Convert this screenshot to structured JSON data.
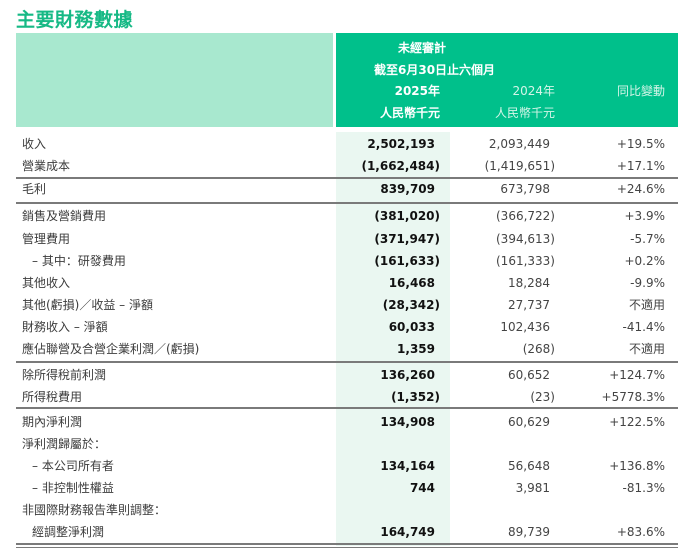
{
  "title": "主要財務數據",
  "header": {
    "group": "未經審計",
    "period": "截至6月30日止六個月",
    "col_2025": "2025年",
    "col_2024": "2024年",
    "col_change": "同比變動",
    "unit_2025": "人民幣千元",
    "unit_2024": "人民幣千元"
  },
  "colors": {
    "title": "#16b985",
    "header_dark": "#00c08b",
    "header_light": "#a8e8cf",
    "band": "#eaf7f1"
  },
  "rows": [
    {
      "label": "收入",
      "v2025": "2,502,193",
      "v2024": "2,093,449",
      "change": "+19.5%"
    },
    {
      "label": "營業成本",
      "v2025": "(1,662,484)",
      "v2024": "(1,419,651)",
      "change": "+17.1%"
    },
    {
      "label": "毛利",
      "v2025": "839,709",
      "v2024": "673,798",
      "change": "+24.6%"
    },
    {
      "label": "銷售及營銷費用",
      "v2025": "(381,020)",
      "v2024": "(366,722)",
      "change": "+3.9%"
    },
    {
      "label": "管理費用",
      "v2025": "(371,947)",
      "v2024": "(394,613)",
      "change": "-5.7%"
    },
    {
      "label": "– 其中：研發費用",
      "v2025": "(161,633)",
      "v2024": "(161,333)",
      "change": "+0.2%",
      "indent": true
    },
    {
      "label": "其他收入",
      "v2025": "16,468",
      "v2024": "18,284",
      "change": "-9.9%"
    },
    {
      "label": "其他(虧損)／收益 – 淨額",
      "v2025": "(28,342)",
      "v2024": "27,737",
      "change": "不適用"
    },
    {
      "label": "財務收入 – 淨額",
      "v2025": "60,033",
      "v2024": "102,436",
      "change": "-41.4%"
    },
    {
      "label": "應佔聯營及合營企業利潤／(虧損)",
      "v2025": "1,359",
      "v2024": "(268)",
      "change": "不適用"
    },
    {
      "label": "除所得稅前利潤",
      "v2025": "136,260",
      "v2024": "60,652",
      "change": "+124.7%"
    },
    {
      "label": "所得稅費用",
      "v2025": "(1,352)",
      "v2024": "(23)",
      "change": "+5778.3%"
    },
    {
      "label": "期內淨利潤",
      "v2025": "134,908",
      "v2024": "60,629",
      "change": "+122.5%"
    },
    {
      "label": "淨利潤歸屬於：",
      "v2025": "",
      "v2024": "",
      "change": ""
    },
    {
      "label": "– 本公司所有者",
      "v2025": "134,164",
      "v2024": "56,648",
      "change": "+136.8%",
      "indent": true
    },
    {
      "label": "– 非控制性權益",
      "v2025": "744",
      "v2024": "3,981",
      "change": "-81.3%",
      "indent": true
    },
    {
      "label": "非國際財務報告準則調整：",
      "v2025": "",
      "v2024": "",
      "change": ""
    },
    {
      "label": "經調整淨利潤",
      "v2025": "164,749",
      "v2024": "89,739",
      "change": "+83.6%",
      "indent": true
    }
  ]
}
